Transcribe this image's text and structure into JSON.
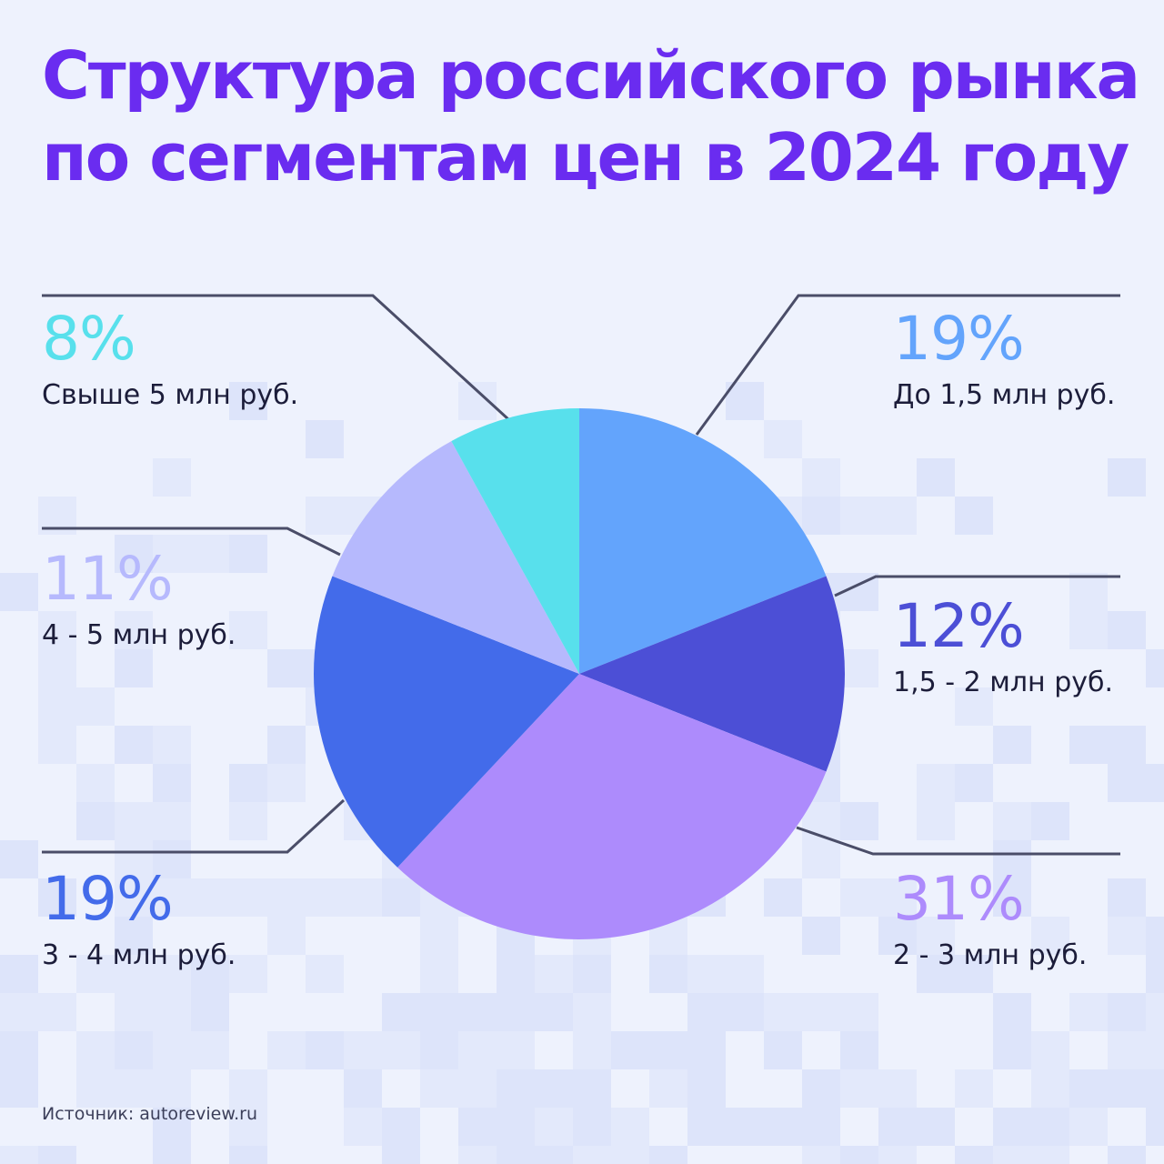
{
  "title": {
    "line1": "Структура российского рынка",
    "line2": "по сегментам цен в 2024 году"
  },
  "source": "Источник: autoreview.ru",
  "colors": {
    "title": "#6a2cf0",
    "background": "#eef2fd",
    "leader_line": "#4a4d68",
    "text": "#1c1d3a"
  },
  "chart_data": {
    "type": "pie",
    "unit": "%",
    "slices": [
      {
        "label": "До 1,5 млн руб.",
        "value": 19,
        "color": "#63a4fc",
        "text_color": "#63a4fc"
      },
      {
        "label": "1,5 - 2 млн руб.",
        "value": 12,
        "color": "#4c4fd6",
        "text_color": "#4c4fd6"
      },
      {
        "label": "2 - 3 млн руб.",
        "value": 31,
        "color": "#ad8bfc",
        "text_color": "#ad8bfc"
      },
      {
        "label": "3 - 4 млн руб.",
        "value": 19,
        "color": "#436bea",
        "text_color": "#436bea"
      },
      {
        "label": "4 - 5 млн руб.",
        "value": 11,
        "color": "#b6b9fd",
        "text_color": "#b6b9fd"
      },
      {
        "label": "Свыше 5 млн руб.",
        "value": 8,
        "color": "#58e0ec",
        "text_color": "#58e0ec"
      }
    ]
  }
}
